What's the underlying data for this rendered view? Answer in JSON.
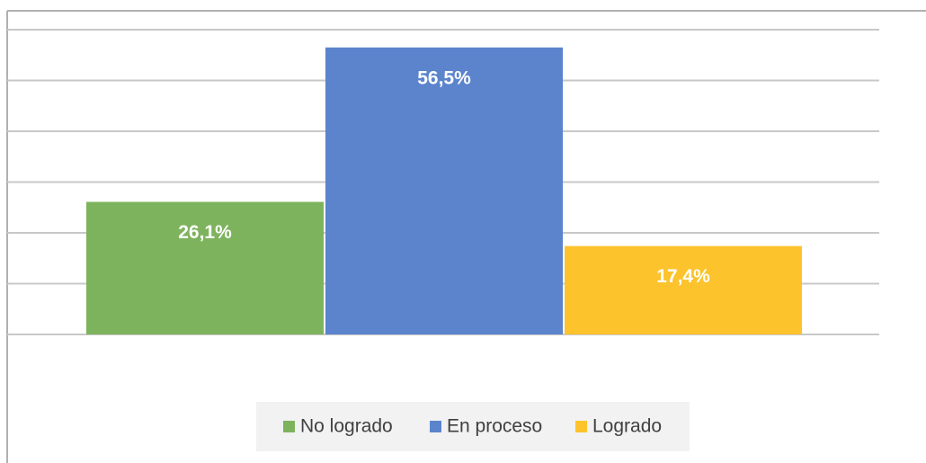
{
  "chart_data": {
    "type": "bar",
    "series": [
      {
        "name": "No logrado",
        "color": "#7eb35e",
        "values": [
          26.1
        ],
        "value_labels": [
          "26,1%"
        ]
      },
      {
        "name": "En proceso",
        "color": "#5b84cd",
        "values": [
          56.5
        ],
        "value_labels": [
          "56,5%"
        ]
      },
      {
        "name": "Logrado",
        "color": "#fcc32d",
        "values": [
          17.4
        ],
        "value_labels": [
          "17,4%"
        ]
      }
    ],
    "ylim": [
      0,
      60
    ],
    "yticks": [
      0,
      10,
      20,
      30,
      40,
      50,
      60
    ],
    "grid": true,
    "legend": "bottom"
  }
}
